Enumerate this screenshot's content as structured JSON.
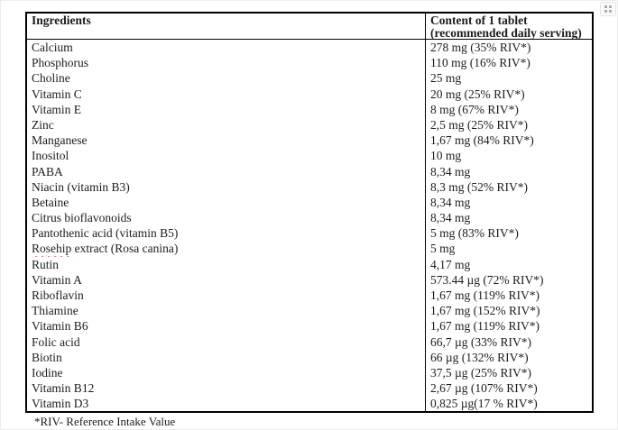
{
  "colors": {
    "table_border": "#000000",
    "spellcheck_underline": "#e03a2f",
    "handle_dots": "#a9a9a9",
    "page_background": "#ffffff"
  },
  "table": {
    "header": {
      "col1": "Ingredients",
      "col2_line1": "Content of 1 tablet",
      "col2_line2": "(recommended daily serving)"
    },
    "rows": [
      {
        "ingredient": "Calcium",
        "content": "278 mg (35% RIV*)"
      },
      {
        "ingredient": "Phosphorus",
        "content": "110 mg (16% RIV*)"
      },
      {
        "ingredient": "Choline",
        "content": "25 mg"
      },
      {
        "ingredient": "Vitamin C",
        "content": "20 mg (25% RIV*)"
      },
      {
        "ingredient": "Vitamin E",
        "content": "8 mg (67% RIV*)"
      },
      {
        "ingredient": "Zinc",
        "content": "2,5 mg (25% RIV*)"
      },
      {
        "ingredient": "Manganese",
        "content": "1,67 mg (84% RIV*)"
      },
      {
        "ingredient": "Inositol",
        "content": "10 mg"
      },
      {
        "ingredient": "PABA",
        "content": "8,34 mg"
      },
      {
        "ingredient": "Niacin (vitamin B3)",
        "content": "8,3 mg (52% RIV*)"
      },
      {
        "ingredient": "Betaine",
        "content": "8,34 mg"
      },
      {
        "ingredient": "Citrus bioflavonoids",
        "content": "8,34 mg"
      },
      {
        "ingredient": "Pantothenic acid (vitamin B5)",
        "content": "5 mg (83% RIV*)"
      },
      {
        "ingredient": "Rosehip extract (Rosa canina)",
        "content": "5 mg",
        "misspelled_word": "Rosehip"
      },
      {
        "ingredient": "Rutin",
        "content": "4,17 mg"
      },
      {
        "ingredient": "Vitamin A",
        "content": "573.44 µg (72% RIV*)"
      },
      {
        "ingredient": "Riboflavin",
        "content": "1,67 mg (119% RIV*)"
      },
      {
        "ingredient": "Thiamine",
        "content": "1,67 mg (152% RIV*)"
      },
      {
        "ingredient": "Vitamin B6",
        "content": "1,67 mg (119% RIV*)"
      },
      {
        "ingredient": "Folic acid",
        "content": "66,7 µg (33% RIV*)"
      },
      {
        "ingredient": "Biotin",
        "content": "66 µg (132% RIV*)"
      },
      {
        "ingredient": "Iodine",
        "content": "37,5 µg (25% RIV*)"
      },
      {
        "ingredient": "Vitamin B12",
        "content": "2,67 µg (107% RIV*)"
      },
      {
        "ingredient": "Vitamin D3",
        "content": "0,825 µg(17 % RIV*)"
      }
    ]
  },
  "footnote": "*RIV- Reference Intake Value",
  "icons": {
    "drag_handle": "drag-handle-icon"
  }
}
